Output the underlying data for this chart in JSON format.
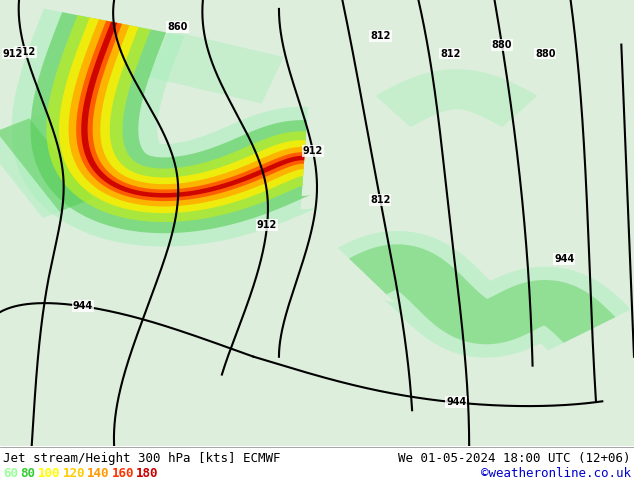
{
  "title_left": "Jet stream/Height 300 hPa [kts] ECMWF",
  "title_right": "We 01-05-2024 18:00 UTC (12+06)",
  "credit": "©weatheronline.co.uk",
  "legend_values": [
    60,
    80,
    100,
    120,
    140,
    160,
    180
  ],
  "legend_colors": [
    "#99ff99",
    "#33cc33",
    "#ffff00",
    "#ffcc00",
    "#ff9900",
    "#ff3300",
    "#cc0000"
  ],
  "title_fontsize": 9,
  "legend_fontsize": 9,
  "credit_color": "#0000cc"
}
